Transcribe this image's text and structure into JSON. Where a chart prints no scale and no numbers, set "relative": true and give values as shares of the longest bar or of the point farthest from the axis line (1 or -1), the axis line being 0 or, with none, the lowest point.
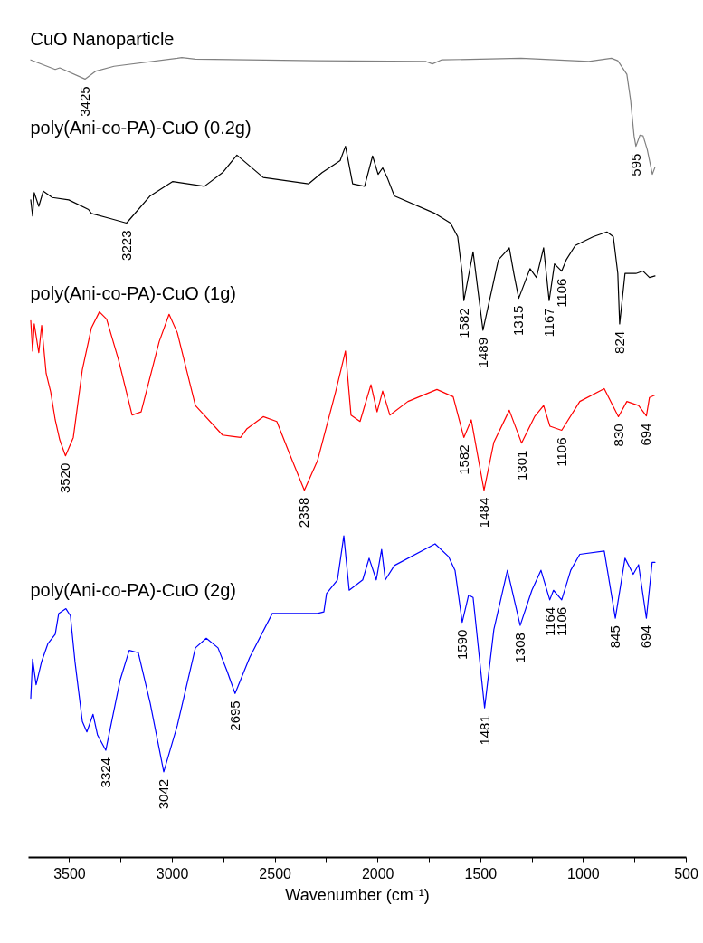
{
  "chart_data": {
    "type": "line",
    "relative": true,
    "xlabel": "Wavenumber (cm⁻¹)",
    "xlim": [
      3700,
      500
    ],
    "xticks": [
      3500,
      {
        "value": 3250,
        "label": null
      },
      3000,
      {
        "value": 2750,
        "label": null
      },
      2500,
      {
        "value": 2250,
        "label": null
      },
      2000,
      {
        "value": 1750,
        "label": null
      },
      1500,
      {
        "value": 1250,
        "label": null
      },
      1000,
      {
        "value": 750,
        "label": null
      },
      500
    ],
    "series": [
      {
        "name": "CuO Nanoparticle",
        "color": "#808080",
        "x": [
          3689,
          3570,
          3548,
          3425,
          3372,
          3284,
          2976,
          2954,
          2888,
          2294,
          1766,
          1735,
          1691,
          1304,
          974,
          864,
          833,
          789,
          771,
          754,
          745,
          725,
          710,
          690,
          665,
          652
        ],
        "values": [
          0.997,
          0.985,
          0.987,
          0.973,
          0.983,
          0.989,
          0.999,
          1.0,
          0.998,
          0.996,
          0.995,
          0.992,
          0.997,
          0.999,
          0.995,
          0.999,
          0.996,
          0.979,
          0.947,
          0.902,
          0.889,
          0.903,
          0.902,
          0.885,
          0.854,
          0.863
        ]
      },
      {
        "name": "poly(Ani-co-PA)-CuO (0.2g)",
        "color": "#000000",
        "x": [
          3689,
          3680,
          3672,
          3650,
          3628,
          3584,
          3504,
          3408,
          3394,
          3306,
          3223,
          3108,
          2998,
          2844,
          2756,
          2686,
          2558,
          2338,
          2272,
          2184,
          2158,
          2123,
          2065,
          2026,
          1999,
          1977,
          1955,
          1920,
          1722,
          1647,
          1612,
          1590,
          1582,
          1537,
          1489,
          1414,
          1361,
          1339,
          1315,
          1260,
          1229,
          1194,
          1167,
          1141,
          1106,
          1084,
          1040,
          952,
          886,
          855,
          833,
          824,
          798,
          745,
          710,
          679,
          652
        ],
        "values": [
          0.822,
          0.802,
          0.831,
          0.814,
          0.833,
          0.825,
          0.822,
          0.81,
          0.805,
          0.799,
          0.793,
          0.827,
          0.845,
          0.839,
          0.856,
          0.878,
          0.85,
          0.842,
          0.856,
          0.871,
          0.889,
          0.842,
          0.839,
          0.877,
          0.854,
          0.862,
          0.85,
          0.827,
          0.805,
          0.793,
          0.776,
          0.73,
          0.696,
          0.757,
          0.659,
          0.747,
          0.762,
          0.73,
          0.699,
          0.736,
          0.725,
          0.762,
          0.696,
          0.742,
          0.733,
          0.747,
          0.765,
          0.776,
          0.782,
          0.776,
          0.73,
          0.667,
          0.73,
          0.73,
          0.733,
          0.725,
          0.727
        ]
      },
      {
        "name": "poly(Ani-co-PA)-CuO (1g)",
        "color": "#ff0000",
        "x": [
          3689,
          3680,
          3672,
          3650,
          3636,
          3614,
          3592,
          3570,
          3548,
          3520,
          3482,
          3438,
          3394,
          3355,
          3320,
          3262,
          3196,
          3152,
          3064,
          3016,
          2976,
          2888,
          2756,
          2668,
          2637,
          2558,
          2492,
          2426,
          2358,
          2294,
          2206,
          2158,
          2131,
          2087,
          2034,
          2004,
          1977,
          1942,
          1854,
          1713,
          1634,
          1582,
          1546,
          1484,
          1436,
          1361,
          1301,
          1238,
          1194,
          1163,
          1106,
          1018,
          899,
          830,
          789,
          732,
          694,
          679,
          652
        ],
        "values": [
          0.671,
          0.633,
          0.667,
          0.631,
          0.665,
          0.605,
          0.582,
          0.547,
          0.522,
          0.502,
          0.525,
          0.61,
          0.662,
          0.682,
          0.673,
          0.622,
          0.553,
          0.557,
          0.645,
          0.679,
          0.656,
          0.565,
          0.528,
          0.525,
          0.536,
          0.551,
          0.545,
          0.502,
          0.459,
          0.496,
          0.582,
          0.633,
          0.553,
          0.545,
          0.591,
          0.557,
          0.583,
          0.553,
          0.57,
          0.585,
          0.576,
          0.525,
          0.547,
          0.459,
          0.519,
          0.559,
          0.518,
          0.551,
          0.565,
          0.539,
          0.534,
          0.57,
          0.586,
          0.551,
          0.57,
          0.565,
          0.552,
          0.575,
          0.578
        ]
      },
      {
        "name": "poly(Ani-co-PA)-CuO (2g)",
        "color": "#0000ff",
        "x": [
          3689,
          3680,
          3663,
          3636,
          3606,
          3570,
          3553,
          3518,
          3496,
          3474,
          3438,
          3416,
          3386,
          3364,
          3324,
          3254,
          3210,
          3166,
          3108,
          3042,
          2976,
          2888,
          2835,
          2778,
          2734,
          2695,
          2624,
          2514,
          2294,
          2263,
          2250,
          2197,
          2166,
          2140,
          2074,
          2043,
          2008,
          1982,
          1964,
          1920,
          1722,
          1656,
          1625,
          1590,
          1559,
          1537,
          1481,
          1436,
          1370,
          1308,
          1251,
          1207,
          1164,
          1146,
          1106,
          1062,
          1018,
          899,
          845,
          798,
          758,
          732,
          694,
          666,
          652
        ],
        "values": [
          0.199,
          0.248,
          0.216,
          0.245,
          0.267,
          0.279,
          0.305,
          0.311,
          0.302,
          0.245,
          0.17,
          0.157,
          0.179,
          0.153,
          0.134,
          0.222,
          0.259,
          0.256,
          0.193,
          0.107,
          0.165,
          0.262,
          0.274,
          0.262,
          0.233,
          0.205,
          0.25,
          0.305,
          0.305,
          0.307,
          0.33,
          0.347,
          0.402,
          0.334,
          0.347,
          0.374,
          0.347,
          0.385,
          0.347,
          0.365,
          0.392,
          0.376,
          0.359,
          0.294,
          0.328,
          0.325,
          0.187,
          0.285,
          0.359,
          0.29,
          0.334,
          0.359,
          0.322,
          0.334,
          0.322,
          0.359,
          0.379,
          0.383,
          0.299,
          0.374,
          0.354,
          0.366,
          0.299,
          0.369,
          0.369
        ]
      }
    ],
    "annotations": [
      {
        "text": "3425",
        "x": 3425,
        "y": 0.973
      },
      {
        "text": "595",
        "x": 745,
        "y": 0.889
      },
      {
        "text": "3223",
        "x": 3223,
        "y": 0.793
      },
      {
        "text": "1582",
        "x": 1582,
        "y": 0.696
      },
      {
        "text": "1489",
        "x": 1489,
        "y": 0.659
      },
      {
        "text": "1315",
        "x": 1315,
        "y": 0.699
      },
      {
        "text": "1167",
        "x": 1167,
        "y": 0.696
      },
      {
        "text": "1106",
        "x": 1106,
        "y": 0.733
      },
      {
        "text": "824",
        "x": 824,
        "y": 0.667
      },
      {
        "text": "3520",
        "x": 3520,
        "y": 0.502
      },
      {
        "text": "2358",
        "x": 2358,
        "y": 0.459
      },
      {
        "text": "1582",
        "x": 1582,
        "y": 0.525
      },
      {
        "text": "1484",
        "x": 1484,
        "y": 0.459
      },
      {
        "text": "1301",
        "x": 1301,
        "y": 0.518
      },
      {
        "text": "1106",
        "x": 1106,
        "y": 0.534
      },
      {
        "text": "830",
        "x": 830,
        "y": 0.551
      },
      {
        "text": "694",
        "x": 694,
        "y": 0.552
      },
      {
        "text": "3324",
        "x": 3324,
        "y": 0.134
      },
      {
        "text": "3042",
        "x": 3042,
        "y": 0.107
      },
      {
        "text": "2695",
        "x": 2695,
        "y": 0.205
      },
      {
        "text": "1590",
        "x": 1590,
        "y": 0.294
      },
      {
        "text": "1481",
        "x": 1481,
        "y": 0.187
      },
      {
        "text": "1308",
        "x": 1308,
        "y": 0.29
      },
      {
        "text": "1164",
        "x": 1164,
        "y": 0.322
      },
      {
        "text": "1106",
        "x": 1106,
        "y": 0.322
      },
      {
        "text": "845",
        "x": 845,
        "y": 0.299
      },
      {
        "text": "694",
        "x": 694,
        "y": 0.299
      }
    ]
  }
}
